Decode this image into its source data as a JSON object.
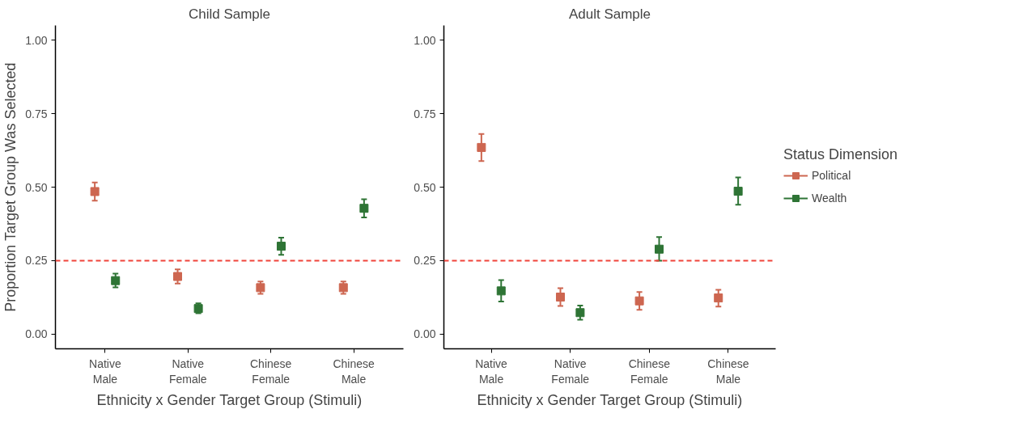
{
  "chart_data": [
    {
      "type": "scatter",
      "title": "Child Sample",
      "xlabel": "Ethnicity x Gender Target Group (Stimuli)",
      "ylabel": "Proportion Target Group Was Selected",
      "categories": [
        "Native\nMale",
        "Native\nFemale",
        "Chinese\nFemale",
        "Chinese\nMale"
      ],
      "ylim": [
        -0.05,
        1.05
      ],
      "yticks": [
        {
          "value": 0,
          "label": "0.00"
        },
        {
          "value": 0.25,
          "label": "0.25"
        },
        {
          "value": 0.5,
          "label": "0.50"
        },
        {
          "value": 0.75,
          "label": "0.75"
        },
        {
          "value": 1,
          "label": "1.00"
        }
      ],
      "marker": "square",
      "grid": false,
      "legend": false,
      "series": [
        {
          "color": "#cd6650",
          "values": [
            0.485,
            0.196,
            0.158,
            0.158
          ],
          "errors": [
            [
              0.454,
              0.516
            ],
            [
              0.172,
              0.22
            ],
            [
              0.137,
              0.179
            ],
            [
              0.137,
              0.179
            ]
          ]
        },
        {
          "color": "#2e7435",
          "values": [
            0.182,
            0.087,
            0.299,
            0.428
          ],
          "errors": [
            [
              0.159,
              0.206
            ],
            [
              0.071,
              0.105
            ],
            [
              0.27,
              0.328
            ],
            [
              0.397,
              0.459
            ]
          ]
        }
      ],
      "ref_lines": [
        {
          "axis": "y",
          "value": 0.25,
          "color": "#f0433a",
          "line_style": "dashed"
        }
      ]
    },
    {
      "type": "scatter",
      "title": "Adult Sample",
      "xlabel": "Ethnicity x Gender Target Group (Stimuli)",
      "legend_title": "Status Dimension",
      "categories": [
        "Native\nMale",
        "Native\nFemale",
        "Chinese\nFemale",
        "Chinese\nMale"
      ],
      "ylim": [
        -0.05,
        1.05
      ],
      "yticks": [
        {
          "value": 0,
          "label": "0.00"
        },
        {
          "value": 0.25,
          "label": "0.25"
        },
        {
          "value": 0.5,
          "label": "0.50"
        },
        {
          "value": 0.75,
          "label": "0.75"
        },
        {
          "value": 1,
          "label": "1.00"
        }
      ],
      "marker": "square",
      "grid": false,
      "legend": "right",
      "series": [
        {
          "name": "Political",
          "color": "#cd6650",
          "values": [
            0.635,
            0.126,
            0.113,
            0.123
          ],
          "errors": [
            [
              0.589,
              0.681
            ],
            [
              0.096,
              0.156
            ],
            [
              0.083,
              0.143
            ],
            [
              0.094,
              0.151
            ]
          ]
        },
        {
          "name": "Wealth",
          "color": "#2e7435",
          "values": [
            0.147,
            0.073,
            0.289,
            0.486
          ],
          "errors": [
            [
              0.111,
              0.184
            ],
            [
              0.049,
              0.097
            ],
            [
              0.25,
              0.33
            ],
            [
              0.44,
              0.533
            ]
          ]
        }
      ],
      "ref_lines": [
        {
          "axis": "y",
          "value": 0.25,
          "color": "#f0433a",
          "line_style": "dashed"
        }
      ]
    }
  ]
}
